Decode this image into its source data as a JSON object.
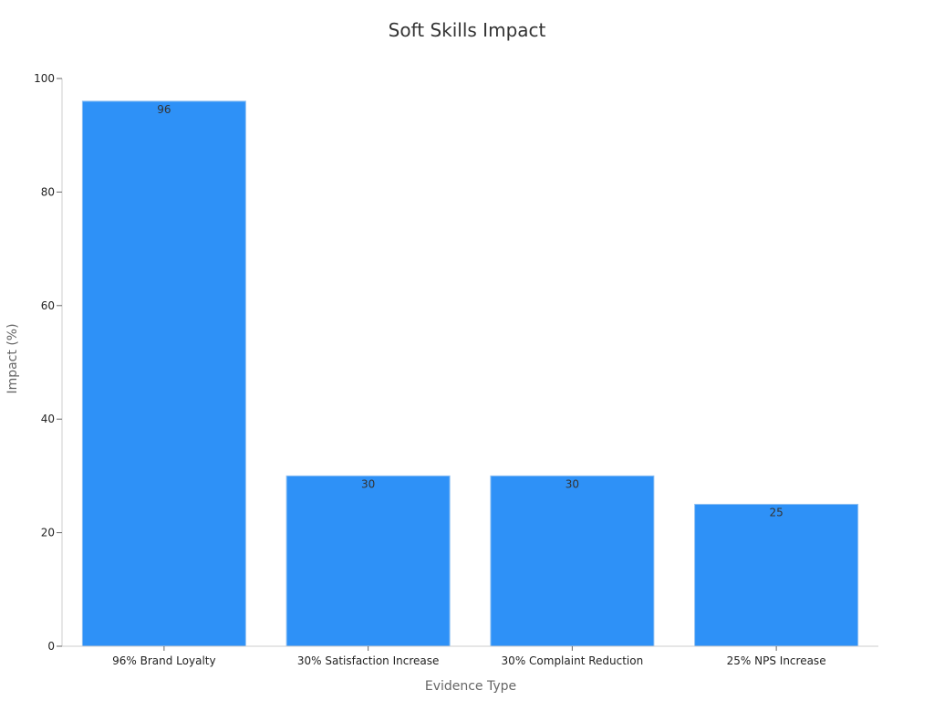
{
  "chart_data": {
    "type": "bar",
    "title": "Soft Skills Impact",
    "xlabel": "Evidence Type",
    "ylabel": "Impact (%)",
    "categories": [
      "96% Brand Loyalty",
      "30% Satisfaction Increase",
      "30% Complaint Reduction",
      "25% NPS Increase"
    ],
    "values": [
      96,
      30,
      30,
      25
    ],
    "data_labels": [
      "96",
      "30",
      "30",
      "25"
    ],
    "ylim": [
      0,
      100
    ],
    "yticks": [
      0,
      20,
      40,
      60,
      80,
      100
    ],
    "ytick_labels": [
      "0",
      "20",
      "40",
      "60",
      "80",
      "100"
    ],
    "grid": false,
    "legend": "none",
    "bar_color": "#2e91f7"
  }
}
